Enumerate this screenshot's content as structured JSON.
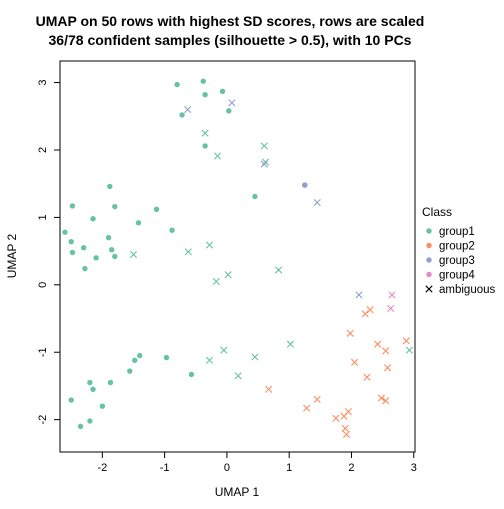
{
  "chart_data": {
    "type": "scatter",
    "title_lines": [
      "UMAP on 50 rows with highest SD scores, rows are scaled",
      "36/78 confident samples (silhouette > 0.5), with 10 PCs"
    ],
    "xlabel": "UMAP 1",
    "ylabel": "UMAP 2",
    "xlim": [
      -2.68,
      3.02
    ],
    "ylim": [
      -2.48,
      3.32
    ],
    "xticks": [
      -2,
      -1,
      0,
      1,
      2,
      3
    ],
    "yticks": [
      -2,
      -1,
      0,
      1,
      2,
      3
    ],
    "grid": false,
    "legend": {
      "title": "Class",
      "placement": "right",
      "entries": [
        {
          "label": "group1",
          "color": "#66C2A5",
          "marker": "dot"
        },
        {
          "label": "group2",
          "color": "#FC8D62",
          "marker": "dot"
        },
        {
          "label": "group3",
          "color": "#8DA0CB",
          "marker": "dot"
        },
        {
          "label": "group4",
          "color": "#E78AC3",
          "marker": "dot"
        },
        {
          "label": "ambiguous",
          "color": "#000000",
          "marker": "cross"
        }
      ]
    },
    "series": [
      {
        "name": "group1",
        "color": "#66C2A5",
        "marker": "dot",
        "points": [
          [
            -0.8,
            2.97
          ],
          [
            -0.38,
            3.02
          ],
          [
            -0.07,
            2.87
          ],
          [
            -0.72,
            2.52
          ],
          [
            -0.35,
            2.82
          ],
          [
            0.03,
            2.58
          ],
          [
            -0.35,
            2.06
          ],
          [
            0.45,
            1.31
          ],
          [
            1.25,
            1.48
          ],
          [
            -2.48,
            1.17
          ],
          [
            -1.88,
            1.46
          ],
          [
            -2.6,
            0.78
          ],
          [
            -2.15,
            0.98
          ],
          [
            -1.8,
            1.16
          ],
          [
            -1.13,
            1.12
          ],
          [
            -1.42,
            0.92
          ],
          [
            -0.88,
            0.81
          ],
          [
            -2.5,
            0.64
          ],
          [
            -2.3,
            0.55
          ],
          [
            -1.9,
            0.7
          ],
          [
            -2.48,
            0.48
          ],
          [
            -1.85,
            0.52
          ],
          [
            -2.1,
            0.4
          ],
          [
            -1.8,
            0.42
          ],
          [
            -2.28,
            0.24
          ],
          [
            -1.4,
            -1.05
          ],
          [
            -1.48,
            -1.12
          ],
          [
            -0.97,
            -1.08
          ],
          [
            -1.56,
            -1.28
          ],
          [
            -0.57,
            -1.33
          ],
          [
            -2.2,
            -1.45
          ],
          [
            -1.87,
            -1.45
          ],
          [
            -2.15,
            -1.55
          ],
          [
            -2.5,
            -1.71
          ],
          [
            -2.0,
            -1.8
          ],
          [
            -2.2,
            -2.02
          ],
          [
            -2.35,
            -2.1
          ]
        ]
      },
      {
        "name": "group3",
        "color": "#8DA0CB",
        "marker": "dot",
        "points": [
          [
            1.25,
            1.48
          ]
        ]
      },
      {
        "name": "ambiguous",
        "marker": "cross",
        "points": [
          {
            "x": -0.63,
            "y": 2.6,
            "color": "#8DA0CB"
          },
          {
            "x": 0.08,
            "y": 2.7,
            "color": "#8DA0CB"
          },
          {
            "x": -0.35,
            "y": 2.25,
            "color": "#66C2A5"
          },
          {
            "x": 0.6,
            "y": 2.06,
            "color": "#66C2A5"
          },
          {
            "x": -0.15,
            "y": 1.91,
            "color": "#66C2A5"
          },
          {
            "x": 0.62,
            "y": 1.82,
            "color": "#66C2A5"
          },
          {
            "x": 0.6,
            "y": 1.79,
            "color": "#8DA0CB"
          },
          {
            "x": 1.45,
            "y": 1.22,
            "color": "#8DA0CB"
          },
          {
            "x": -0.28,
            "y": 0.59,
            "color": "#66C2A5"
          },
          {
            "x": -0.62,
            "y": 0.49,
            "color": "#66C2A5"
          },
          {
            "x": -1.5,
            "y": 0.45,
            "color": "#66C2A5"
          },
          {
            "x": 0.83,
            "y": 0.22,
            "color": "#66C2A5"
          },
          {
            "x": 0.02,
            "y": 0.15,
            "color": "#66C2A5"
          },
          {
            "x": -0.17,
            "y": 0.05,
            "color": "#66C2A5"
          },
          {
            "x": 2.12,
            "y": -0.15,
            "color": "#8DA0CB"
          },
          {
            "x": 2.65,
            "y": -0.15,
            "color": "#E78AC3"
          },
          {
            "x": 2.63,
            "y": -0.35,
            "color": "#E78AC3"
          },
          {
            "x": 2.3,
            "y": -0.37,
            "color": "#FC8D62"
          },
          {
            "x": 2.22,
            "y": -0.43,
            "color": "#FC8D62"
          },
          {
            "x": 1.98,
            "y": -0.72,
            "color": "#FC8D62"
          },
          {
            "x": 2.88,
            "y": -0.83,
            "color": "#FC8D62"
          },
          {
            "x": 2.42,
            "y": -0.88,
            "color": "#FC8D62"
          },
          {
            "x": 1.02,
            "y": -0.88,
            "color": "#66C2A5"
          },
          {
            "x": 2.93,
            "y": -0.97,
            "color": "#66C2A5"
          },
          {
            "x": 2.55,
            "y": -0.98,
            "color": "#FC8D62"
          },
          {
            "x": -0.05,
            "y": -0.97,
            "color": "#66C2A5"
          },
          {
            "x": 0.45,
            "y": -1.07,
            "color": "#66C2A5"
          },
          {
            "x": -0.28,
            "y": -1.12,
            "color": "#66C2A5"
          },
          {
            "x": 2.05,
            "y": -1.15,
            "color": "#FC8D62"
          },
          {
            "x": 2.58,
            "y": -1.23,
            "color": "#FC8D62"
          },
          {
            "x": 0.18,
            "y": -1.35,
            "color": "#66C2A5"
          },
          {
            "x": 2.25,
            "y": -1.37,
            "color": "#FC8D62"
          },
          {
            "x": 0.67,
            "y": -1.55,
            "color": "#FC8D62"
          },
          {
            "x": 2.48,
            "y": -1.68,
            "color": "#FC8D62"
          },
          {
            "x": 1.45,
            "y": -1.7,
            "color": "#FC8D62"
          },
          {
            "x": 2.55,
            "y": -1.72,
            "color": "#FC8D62"
          },
          {
            "x": 1.28,
            "y": -1.83,
            "color": "#FC8D62"
          },
          {
            "x": 1.95,
            "y": -1.88,
            "color": "#FC8D62"
          },
          {
            "x": 1.88,
            "y": -1.95,
            "color": "#FC8D62"
          },
          {
            "x": 1.75,
            "y": -1.98,
            "color": "#FC8D62"
          },
          {
            "x": 1.9,
            "y": -2.13,
            "color": "#FC8D62"
          },
          {
            "x": 1.92,
            "y": -2.22,
            "color": "#FC8D62"
          }
        ]
      }
    ]
  }
}
